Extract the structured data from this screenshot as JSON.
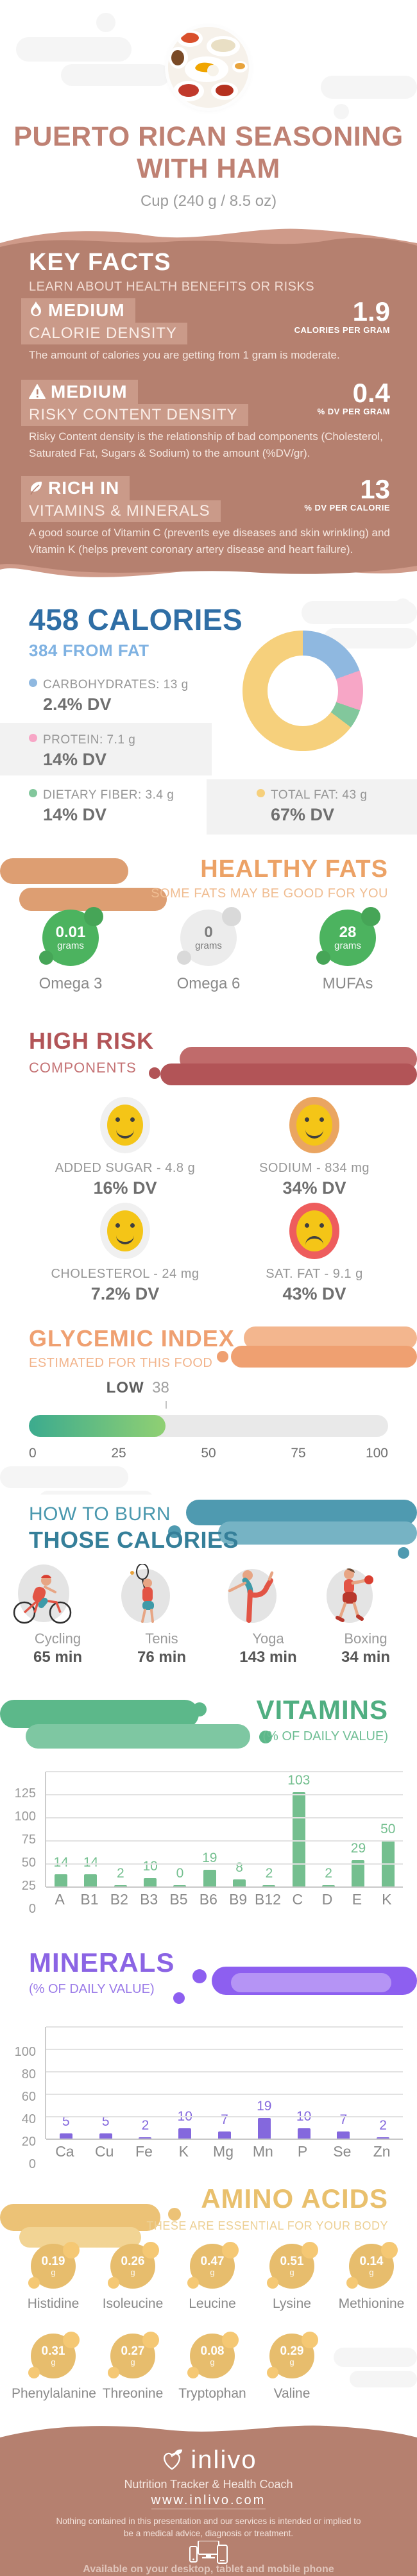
{
  "header": {
    "photo": "seasoning-bowls-photo",
    "title_line1": "PUERTO RICAN SEASONING",
    "title_line2": "WITH HAM",
    "serving": "Cup (240 g / 8.5 oz)"
  },
  "key_facts": {
    "title": "KEY FACTS",
    "subtitle": "LEARN ABOUT HEALTH BENEFITS OR RISKS",
    "items": [
      {
        "icon": "flame-icon",
        "level": "MEDIUM",
        "name": "CALORIE DENSITY",
        "value": "1.9",
        "unit": "CALORIES PER GRAM",
        "description": "The amount of calories you are getting from 1 gram is moderate."
      },
      {
        "icon": "warning-icon",
        "level": "MEDIUM",
        "name": "RISKY CONTENT DENSITY",
        "value": "0.4",
        "unit": "% DV PER GRAM",
        "description": "Risky Content density is the relationship of bad components (Cholesterol, Saturated Fat, Sugars & Sodium) to the amount (%DV/gr)."
      },
      {
        "icon": "leaf-icon",
        "level": "RICH  IN",
        "name": "VITAMINS & MINERALS",
        "value": "13",
        "unit": "% DV PER CALORIE",
        "description": "A good source of Vitamin C (prevents eye diseases and skin wrinkling) and Vitamin K (helps prevent coronary artery disease and heart failure)."
      }
    ]
  },
  "calories": {
    "title": "458 CALORIES",
    "subtitle": "384 FROM FAT",
    "legend": [
      {
        "label": "CARBOHYDRATES: 13 g",
        "dv": "2.4% DV"
      },
      {
        "label": "PROTEIN: 7.1 g",
        "dv": "14% DV"
      },
      {
        "label": "DIETARY FIBER: 3.4 g",
        "dv": "14% DV"
      },
      {
        "label": "TOTAL FAT: 43 g",
        "dv": "67% DV"
      }
    ]
  },
  "healthy_fats": {
    "title": "HEALTHY FATS",
    "subtitle": "SOME FATS MAY BE GOOD FOR YOU",
    "items": [
      {
        "value": "0.01",
        "unit": "grams",
        "name": "Omega 3",
        "variant": "green",
        "color": "#4cb35f"
      },
      {
        "value": "0",
        "unit": "grams",
        "name": "Omega 6",
        "variant": "gray",
        "color": "#ececec"
      },
      {
        "value": "28",
        "unit": "grams",
        "name": "MUFAs",
        "variant": "green",
        "color": "#4cb35f"
      }
    ]
  },
  "high_risk": {
    "title": "HIGH RISK",
    "subtitle": "COMPONENTS",
    "items": [
      {
        "label": "ADDED SUGAR - 4.8 g",
        "dv": "16% DV",
        "mood": "smile",
        "color": "#f0f0f0"
      },
      {
        "label": "SODIUM - 834 mg",
        "dv": "34% DV",
        "mood": "smile",
        "color": "#eaa561"
      },
      {
        "label": "CHOLESTEROL - 24 mg",
        "dv": "7.2% DV",
        "mood": "smile",
        "color": "#f0f0f0"
      },
      {
        "label": "SAT. FAT - 9.1 g",
        "dv": "43% DV",
        "mood": "frown",
        "color": "#ee5d5d"
      }
    ]
  },
  "glycemic": {
    "title": "GLYCEMIC INDEX",
    "subtitle": "ESTIMATED FOR THIS FOOD",
    "level": "LOW",
    "value": 38,
    "scale": [
      "0",
      "25",
      "50",
      "75",
      "100"
    ]
  },
  "burn": {
    "title_line1": "HOW TO BURN",
    "title_line2": "THOSE CALORIES",
    "activities": [
      {
        "icon": "cycling-icon",
        "name": "Cycling",
        "time": "65 min"
      },
      {
        "icon": "tennis-icon",
        "name": "Tenis",
        "time": "76 min"
      },
      {
        "icon": "yoga-icon",
        "name": "Yoga",
        "time": "143 min"
      },
      {
        "icon": "boxing-icon",
        "name": "Boxing",
        "time": "34 min"
      }
    ]
  },
  "vitamins": {
    "title": "VITAMINS",
    "subtitle": "(% OF DAILY VALUE)"
  },
  "minerals": {
    "title": "MINERALS",
    "subtitle": "(% OF DAILY VALUE)"
  },
  "amino_acids": {
    "title": "AMINO ACIDS",
    "subtitle": "THESE ARE ESSENTIAL FOR YOUR BODY",
    "unit": "g",
    "items": [
      {
        "value": "0.19",
        "name": "Histidine"
      },
      {
        "value": "0.26",
        "name": "Isoleucine"
      },
      {
        "value": "0.47",
        "name": "Leucine"
      },
      {
        "value": "0.51",
        "name": "Lysine"
      },
      {
        "value": "0.14",
        "name": "Methionine"
      },
      {
        "value": "0.31",
        "name": "Phenylalanine"
      },
      {
        "value": "0.27",
        "name": "Threonine"
      },
      {
        "value": "0.08",
        "name": "Tryptophan"
      },
      {
        "value": "0.29",
        "name": "Valine"
      }
    ]
  },
  "footer": {
    "brand": "inlivo",
    "tagline": "Nutrition Tracker & Health Coach",
    "url": "www.inlivo.com",
    "disclaimer": "Nothing contained in this presentation and our services is intended or implied to be a medical advice, diagnosis or treatment.",
    "availability": "Available on your desktop, tablet and mobile phone"
  },
  "colors": {
    "rose_bg": "#b5806f",
    "rose_light": "#cf9a89",
    "title_rose": "#bf8173",
    "calories_blue": "#2f6ea5",
    "calories_blue_light": "#7fb2e2",
    "fats_orange": "#eca266",
    "risk_maroon": "#b25457",
    "gi_orange": "#efa071",
    "burn_teal": "#357f99",
    "vitamins_green": "#50ae81",
    "minerals_purple": "#8b64e4",
    "amino_gold": "#e9c06d"
  },
  "chart_data": [
    {
      "id": "calorie-breakdown-donut",
      "type": "pie",
      "title": "458 Calories, 384 from fat (segments proportional to grams)",
      "categories": [
        "Carbohydrates",
        "Protein",
        "Dietary Fiber",
        "Total Fat"
      ],
      "values_g": [
        13,
        7.1,
        3.4,
        43
      ],
      "dv_percent": [
        2.4,
        14,
        14,
        67
      ],
      "colors": [
        "#8fb8e0",
        "#f7a6c6",
        "#82c79c",
        "#f6d07c"
      ],
      "legend_position": "left"
    },
    {
      "id": "glycemic-gauge",
      "type": "bar",
      "title": "Glycemic Index estimated for this food",
      "categories": [
        "Glycemic Index"
      ],
      "values": [
        38
      ],
      "label": "LOW",
      "xlim": [
        0,
        100
      ],
      "xticks": [
        0,
        25,
        50,
        75,
        100
      ]
    },
    {
      "id": "vitamins-bars",
      "type": "bar",
      "title": "VITAMINS (% of daily value)",
      "categories": [
        "A",
        "B1",
        "B2",
        "B3",
        "B5",
        "B6",
        "B9",
        "B12",
        "C",
        "D",
        "E",
        "K"
      ],
      "values": [
        14,
        14,
        2,
        10,
        0,
        19,
        8,
        2,
        103,
        2,
        29,
        50
      ],
      "ylim": [
        0,
        125
      ],
      "yticks": [
        0,
        25,
        50,
        75,
        100,
        125
      ],
      "bar_color": "#74bf8f",
      "grid": true,
      "xlabel": "",
      "ylabel": "% of daily value"
    },
    {
      "id": "minerals-bars",
      "type": "bar",
      "title": "MINERALS (% of daily value)",
      "categories": [
        "Ca",
        "Cu",
        "Fe",
        "K",
        "Mg",
        "Mn",
        "P",
        "Se",
        "Zn"
      ],
      "values": [
        5,
        5,
        2,
        10,
        7,
        19,
        10,
        7,
        2
      ],
      "ylim": [
        0,
        100
      ],
      "yticks": [
        0,
        20,
        40,
        60,
        80,
        100
      ],
      "bar_color": "#8468dd",
      "grid": true,
      "xlabel": "",
      "ylabel": "% of daily value"
    }
  ]
}
